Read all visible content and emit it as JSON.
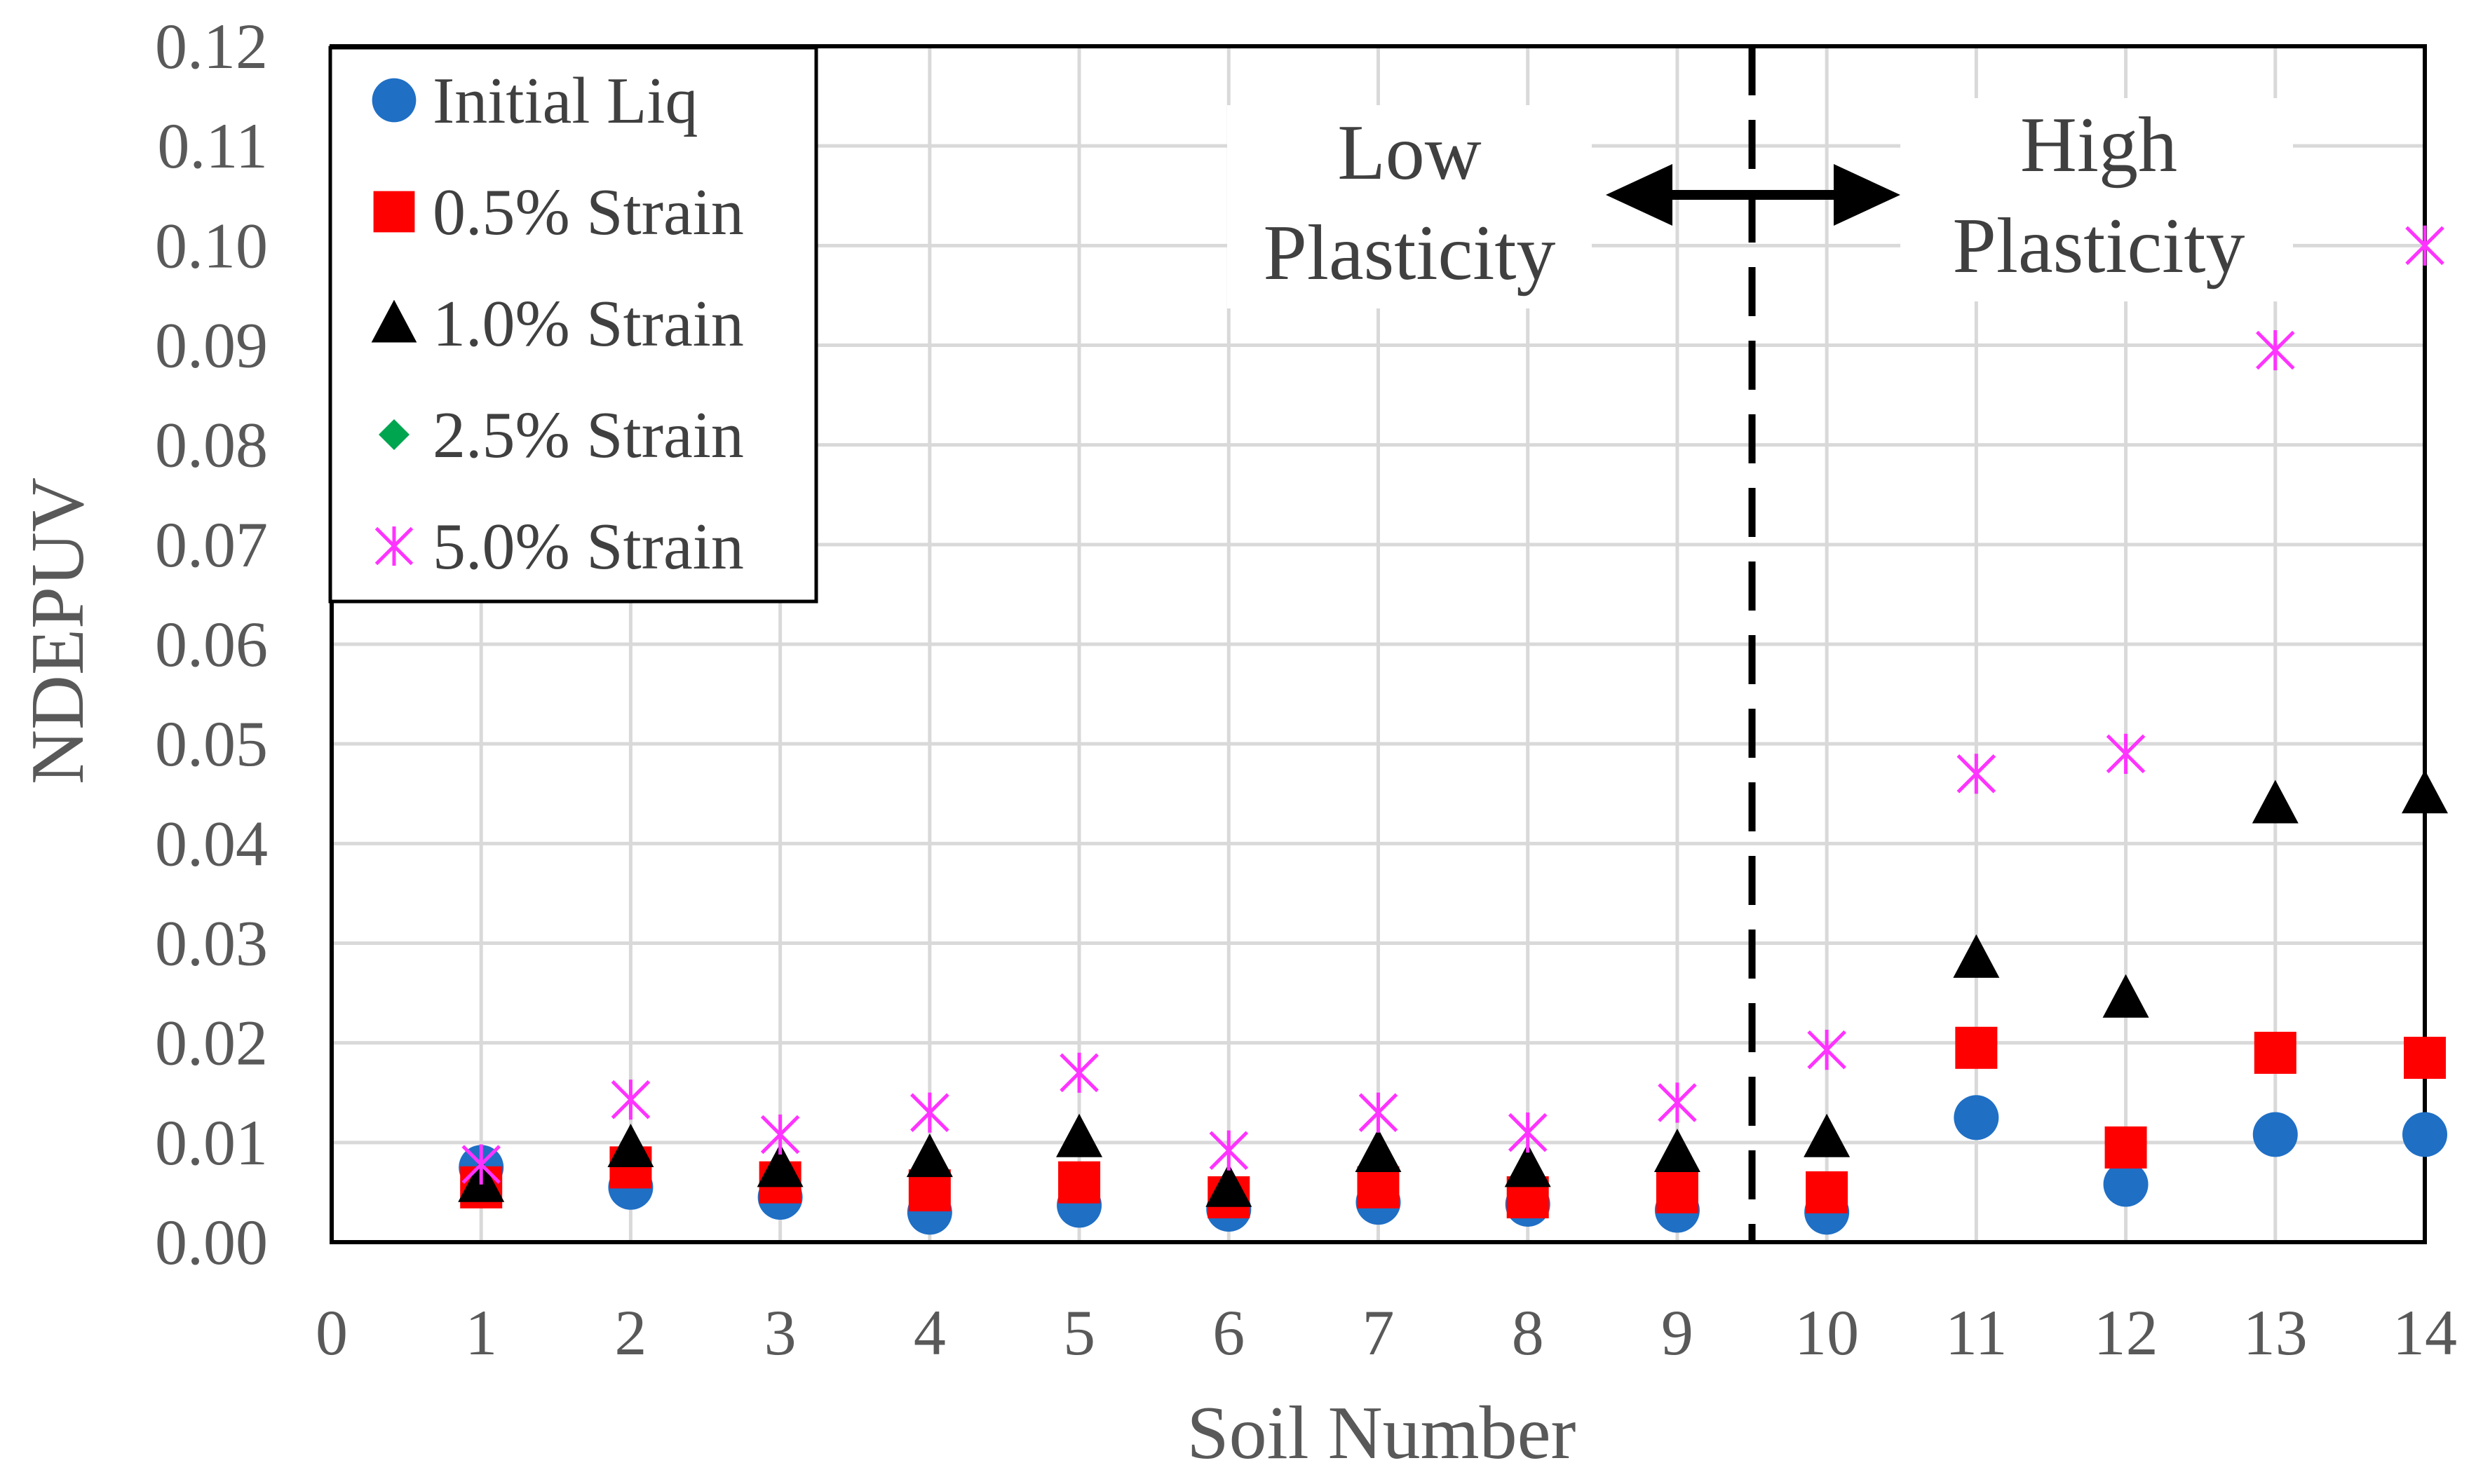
{
  "chart_data": {
    "type": "scatter",
    "xlabel": "Soil Number",
    "ylabel": "NDEPUV",
    "xlim": [
      0,
      14
    ],
    "ylim": [
      0,
      0.12
    ],
    "x_ticks": [
      "0",
      "1",
      "2",
      "3",
      "4",
      "5",
      "6",
      "7",
      "8",
      "9",
      "10",
      "11",
      "12",
      "13",
      "14"
    ],
    "y_ticks": [
      "0.00",
      "0.01",
      "0.02",
      "0.03",
      "0.04",
      "0.05",
      "0.06",
      "0.07",
      "0.08",
      "0.09",
      "0.10",
      "0.11",
      "0.12"
    ],
    "grid": true,
    "legend_position": "top-left",
    "series": [
      {
        "name": "Initial Liq",
        "marker": "circle",
        "color": "#1f6fc5",
        "x": [
          1,
          2,
          3,
          4,
          5,
          6,
          7,
          8,
          9,
          10,
          11,
          12,
          13,
          14
        ],
        "values": [
          0.0075,
          0.0055,
          0.0045,
          0.003,
          0.0037,
          0.0033,
          0.004,
          0.0038,
          0.0032,
          0.003,
          0.0125,
          0.0058,
          0.0108,
          0.0108
        ]
      },
      {
        "name": "0.5% Strain",
        "marker": "square",
        "color": "#ff0000",
        "x": [
          1,
          2,
          3,
          4,
          5,
          6,
          7,
          8,
          9,
          10,
          11,
          12,
          13,
          14
        ],
        "values": [
          0.0055,
          0.0075,
          0.006,
          0.0052,
          0.006,
          0.0045,
          0.0055,
          0.0045,
          0.005,
          0.005,
          0.0195,
          0.0095,
          0.019,
          0.0185
        ]
      },
      {
        "name": "1.0% Strain",
        "marker": "triangle",
        "color": "#000000",
        "x": [
          1,
          2,
          3,
          4,
          5,
          6,
          7,
          8,
          9,
          10,
          11,
          12,
          13,
          14
        ],
        "values": [
          0.006,
          0.0095,
          0.0075,
          0.0085,
          0.0105,
          0.0055,
          0.009,
          0.0075,
          0.009,
          0.0105,
          0.0285,
          0.0245,
          0.044,
          0.045
        ]
      },
      {
        "name": "2.5% Strain",
        "marker": "diamond",
        "color": "#00a550",
        "x": [],
        "values": []
      },
      {
        "name": "5.0% Strain",
        "marker": "asterisk",
        "color": "#ff33ff",
        "x": [
          1,
          2,
          3,
          4,
          5,
          6,
          7,
          8,
          9,
          10,
          11,
          12,
          13,
          14
        ],
        "values": [
          0.0078,
          0.0143,
          0.0108,
          0.013,
          0.017,
          0.0092,
          0.013,
          0.011,
          0.014,
          0.0193,
          0.047,
          0.049,
          0.0895,
          0.1
        ]
      }
    ],
    "divider_x": 9.5,
    "annotations": {
      "low_line1": "Low",
      "low_line2": "Plasticity",
      "high_line1": "High",
      "high_line2": "Plasticity"
    }
  }
}
